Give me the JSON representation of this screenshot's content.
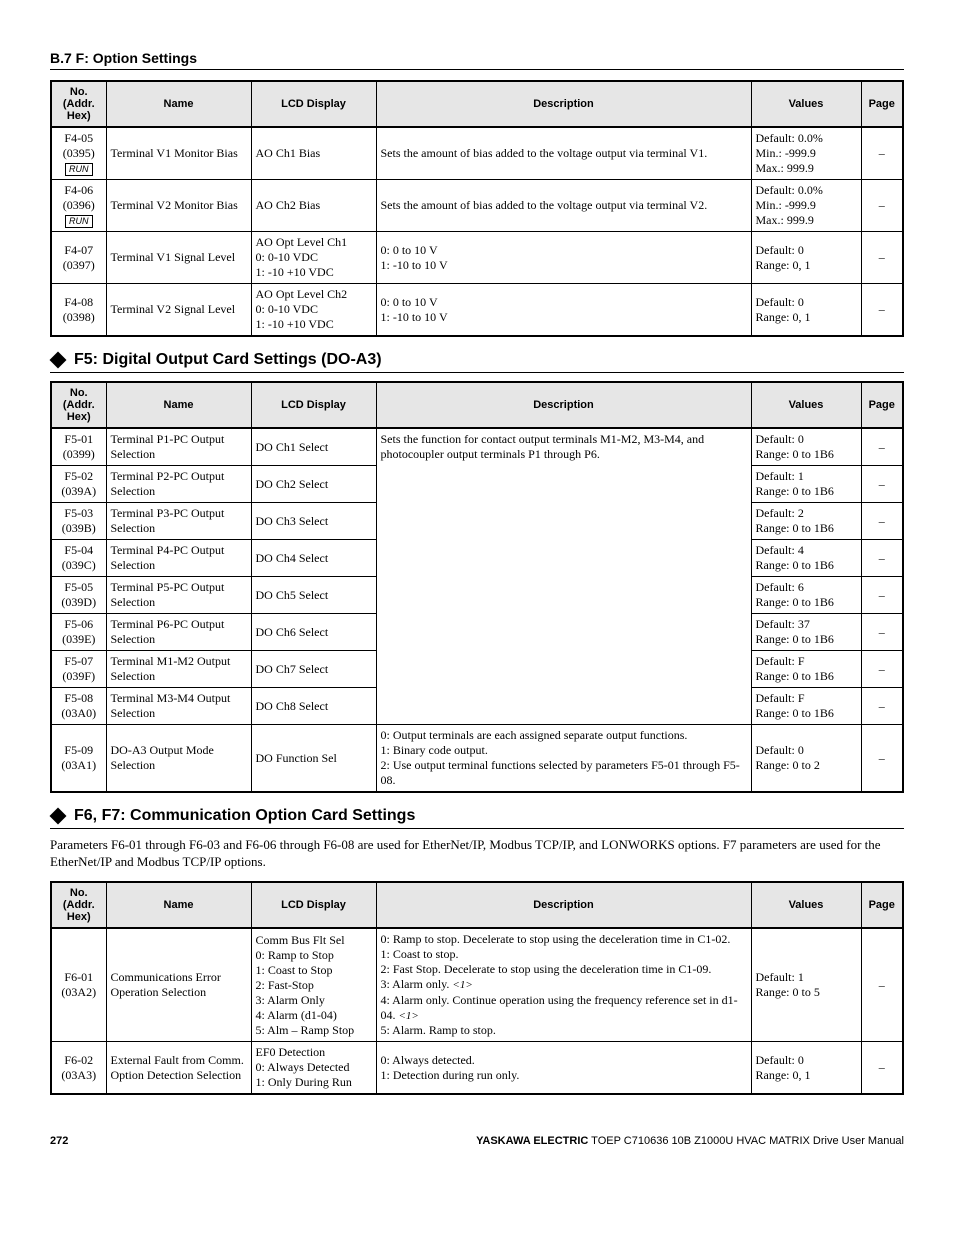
{
  "header": {
    "section": "B.7 F: Option Settings"
  },
  "columns": {
    "no": "No. (Addr. Hex)",
    "name": "Name",
    "lcd": "LCD Display",
    "desc": "Description",
    "values": "Values",
    "page": "Page"
  },
  "t1": {
    "rows": [
      {
        "no": "F4-05",
        "addr": "(0395)",
        "run": "RUN",
        "name": "Terminal V1 Monitor Bias",
        "lcd": "AO Ch1 Bias",
        "desc": "Sets the amount of bias added to the voltage output via terminal V1.",
        "values": "Default: 0.0%\nMin.: -999.9\nMax.: 999.9",
        "page": "–"
      },
      {
        "no": "F4-06",
        "addr": "(0396)",
        "run": "RUN",
        "name": "Terminal V2 Monitor Bias",
        "lcd": "AO Ch2 Bias",
        "desc": "Sets the amount of bias added to the voltage output via terminal V2.",
        "values": "Default: 0.0%\nMin.: -999.9\nMax.: 999.9",
        "page": "–"
      },
      {
        "no": "F4-07",
        "addr": "(0397)",
        "run": "",
        "name": "Terminal V1 Signal Level",
        "lcd": "AO Opt Level Ch1\n0: 0-10 VDC\n1: -10 +10 VDC",
        "desc": "0: 0 to 10 V\n1: -10 to 10 V",
        "values": "Default: 0\nRange: 0, 1",
        "page": "–"
      },
      {
        "no": "F4-08",
        "addr": "(0398)",
        "run": "",
        "name": "Terminal V2 Signal Level",
        "lcd": "AO Opt Level Ch2\n0: 0-10 VDC\n1: -10 +10 VDC",
        "desc": "0: 0 to 10 V\n1: -10 to 10 V",
        "values": "Default: 0\nRange: 0, 1",
        "page": "–"
      }
    ]
  },
  "s2": {
    "title": "F5: Digital Output Card Settings (DO-A3)"
  },
  "t2": {
    "desc_span": "Sets the function for contact output terminals M1-M2, M3-M4, and photocoupler output terminals P1 through P6.",
    "rows": [
      {
        "no": "F5-01",
        "addr": "(0399)",
        "name": "Terminal P1-PC Output Selection",
        "lcd": "DO Ch1 Select",
        "values": "Default: 0\nRange: 0 to 1B6",
        "page": "–"
      },
      {
        "no": "F5-02",
        "addr": "(039A)",
        "name": "Terminal P2-PC Output Selection",
        "lcd": "DO Ch2 Select",
        "values": "Default: 1\nRange: 0 to 1B6",
        "page": "–"
      },
      {
        "no": "F5-03",
        "addr": "(039B)",
        "name": "Terminal P3-PC Output Selection",
        "lcd": "DO Ch3 Select",
        "values": "Default: 2\nRange: 0 to 1B6",
        "page": "–"
      },
      {
        "no": "F5-04",
        "addr": "(039C)",
        "name": "Terminal P4-PC Output Selection",
        "lcd": "DO Ch4 Select",
        "values": "Default: 4\nRange: 0 to 1B6",
        "page": "–"
      },
      {
        "no": "F5-05",
        "addr": "(039D)",
        "name": "Terminal P5-PC Output Selection",
        "lcd": "DO Ch5 Select",
        "values": "Default: 6\nRange: 0 to 1B6",
        "page": "–"
      },
      {
        "no": "F5-06",
        "addr": "(039E)",
        "name": "Terminal P6-PC Output Selection",
        "lcd": "DO Ch6 Select",
        "values": "Default: 37\nRange: 0 to 1B6",
        "page": "–"
      },
      {
        "no": "F5-07",
        "addr": "(039F)",
        "name": "Terminal M1-M2 Output Selection",
        "lcd": "DO Ch7 Select",
        "values": "Default: F\nRange: 0 to 1B6",
        "page": "–"
      },
      {
        "no": "F5-08",
        "addr": "(03A0)",
        "name": "Terminal M3-M4 Output Selection",
        "lcd": "DO Ch8 Select",
        "values": "Default: F\nRange: 0 to 1B6",
        "page": "–"
      }
    ],
    "last": {
      "no": "F5-09",
      "addr": "(03A1)",
      "name": "DO-A3 Output Mode Selection",
      "lcd": "DO Function Sel",
      "desc": "0: Output terminals are each assigned separate output functions.\n1: Binary code output.\n2: Use output terminal functions selected by parameters F5-01 through F5-08.",
      "values": "Default: 0\nRange: 0 to 2",
      "page": "–"
    }
  },
  "s3": {
    "title": "F6, F7: Communication Option Card Settings",
    "intro": "Parameters F6-01 through F6-03 and F6-06 through F6-08 are used for EtherNet/IP, Modbus TCP/IP, and LONWORKS options. F7 parameters are used for the EtherNet/IP and Modbus TCP/IP options."
  },
  "t3": {
    "rows": [
      {
        "no": "F6-01",
        "addr": "(03A2)",
        "name": "Communications Error Operation Selection",
        "lcd": "Comm Bus Flt Sel\n0: Ramp to Stop\n1: Coast to Stop\n2: Fast-Stop\n3: Alarm Only\n4: Alarm (d1-04)\n5: Alm – Ramp Stop",
        "desc_html": "0: Ramp to stop. Decelerate to stop using the deceleration time in C1-02.<br>1: Coast to stop.<br>2: Fast Stop. Decelerate to stop using the deceleration time in C1-09.<br>3: Alarm only. <span class='i1'>&lt;1&gt;</span><br>4: Alarm only. Continue operation using the frequency reference set in d1-04. <span class='i1'>&lt;1&gt;</span><br>5: Alarm. Ramp to stop.",
        "values": "Default: 1\nRange: 0 to 5",
        "page": "–"
      },
      {
        "no": "F6-02",
        "addr": "(03A3)",
        "name": "External Fault from Comm. Option Detection Selection",
        "lcd": "EF0 Detection\n0: Always Detected\n1: Only During Run",
        "desc": "0: Always detected.\n1: Detection during run only.",
        "values": "Default: 0\nRange: 0, 1",
        "page": "–"
      }
    ]
  },
  "footer": {
    "page": "272",
    "brand": "YASKAWA ELECTRIC",
    "doc": " TOEP C710636 10B Z1000U HVAC MATRIX Drive User Manual"
  }
}
